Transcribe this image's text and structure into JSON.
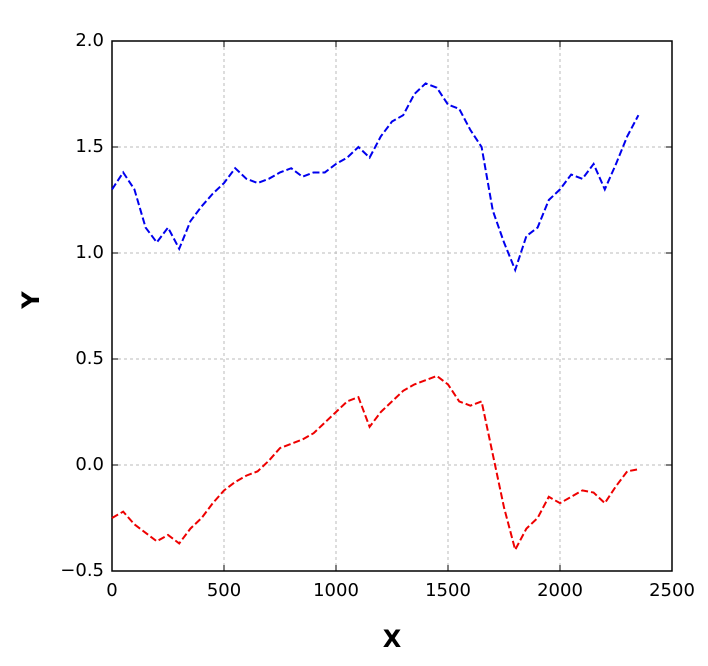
{
  "chart_data": {
    "type": "line",
    "x_label": "X",
    "y_label": "Y",
    "x": [
      0,
      50,
      100,
      150,
      200,
      250,
      300,
      350,
      400,
      450,
      500,
      550,
      600,
      650,
      700,
      750,
      800,
      850,
      900,
      950,
      1000,
      1050,
      1100,
      1150,
      1200,
      1250,
      1300,
      1350,
      1400,
      1450,
      1500,
      1550,
      1600,
      1650,
      1700,
      1750,
      1800,
      1850,
      1900,
      1950,
      2000,
      2050,
      2100,
      2150,
      2200,
      2250,
      2300,
      2350
    ],
    "series": [
      {
        "color": "#0000ee",
        "values": [
          1.3,
          1.38,
          1.3,
          1.12,
          1.05,
          1.12,
          1.02,
          1.15,
          1.22,
          1.28,
          1.33,
          1.4,
          1.35,
          1.33,
          1.35,
          1.38,
          1.4,
          1.36,
          1.38,
          1.38,
          1.42,
          1.45,
          1.5,
          1.45,
          1.55,
          1.62,
          1.65,
          1.75,
          1.8,
          1.78,
          1.7,
          1.68,
          1.58,
          1.5,
          1.2,
          1.05,
          0.92,
          1.08,
          1.12,
          1.25,
          1.3,
          1.37,
          1.35,
          1.42,
          1.3,
          1.42,
          1.55,
          1.65
        ]
      },
      {
        "color": "#ee0000",
        "values": [
          -0.25,
          -0.22,
          -0.28,
          -0.32,
          -0.36,
          -0.33,
          -0.37,
          -0.3,
          -0.25,
          -0.18,
          -0.12,
          -0.08,
          -0.05,
          -0.03,
          0.02,
          0.08,
          0.1,
          0.12,
          0.15,
          0.2,
          0.25,
          0.3,
          0.32,
          0.18,
          0.25,
          0.3,
          0.35,
          0.38,
          0.4,
          0.42,
          0.38,
          0.3,
          0.28,
          0.3,
          0.05,
          -0.2,
          -0.4,
          -0.3,
          -0.25,
          -0.15,
          -0.18,
          -0.15,
          -0.12,
          -0.13,
          -0.18,
          -0.1,
          -0.03,
          -0.02
        ]
      }
    ],
    "line_style": "dashed",
    "xlim": [
      0,
      2500
    ],
    "xticks": [
      0,
      500,
      1000,
      1500,
      2000,
      2500
    ],
    "ylim": [
      -0.5,
      2.0
    ],
    "yticks": [
      {
        "value": -0.5,
        "label": "−0.5"
      },
      {
        "value": 0,
        "label": "0.0"
      },
      0.5,
      {
        "value": 1,
        "label": "1.0"
      },
      1.5,
      {
        "value": 2,
        "label": "2.0"
      }
    ],
    "grid": true
  }
}
